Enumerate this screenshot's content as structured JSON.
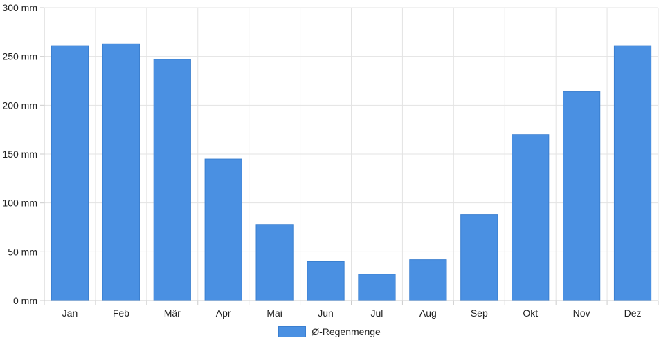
{
  "chart_data": {
    "type": "bar",
    "categories": [
      "Jan",
      "Feb",
      "Mär",
      "Apr",
      "Mai",
      "Jun",
      "Jul",
      "Aug",
      "Sep",
      "Okt",
      "Nov",
      "Dez"
    ],
    "series": [
      {
        "name": "Ø-Regenmenge",
        "values": [
          261,
          263,
          247,
          145,
          78,
          40,
          27,
          42,
          88,
          170,
          214,
          261
        ],
        "color": "#4a90e2"
      }
    ],
    "y_ticks": [
      "0 mm",
      "50 mm",
      "100 mm",
      "150 mm",
      "200 mm",
      "250 mm",
      "300 mm"
    ],
    "ylim": [
      0,
      300
    ],
    "grid": true,
    "legend_position": "bottom-center"
  }
}
